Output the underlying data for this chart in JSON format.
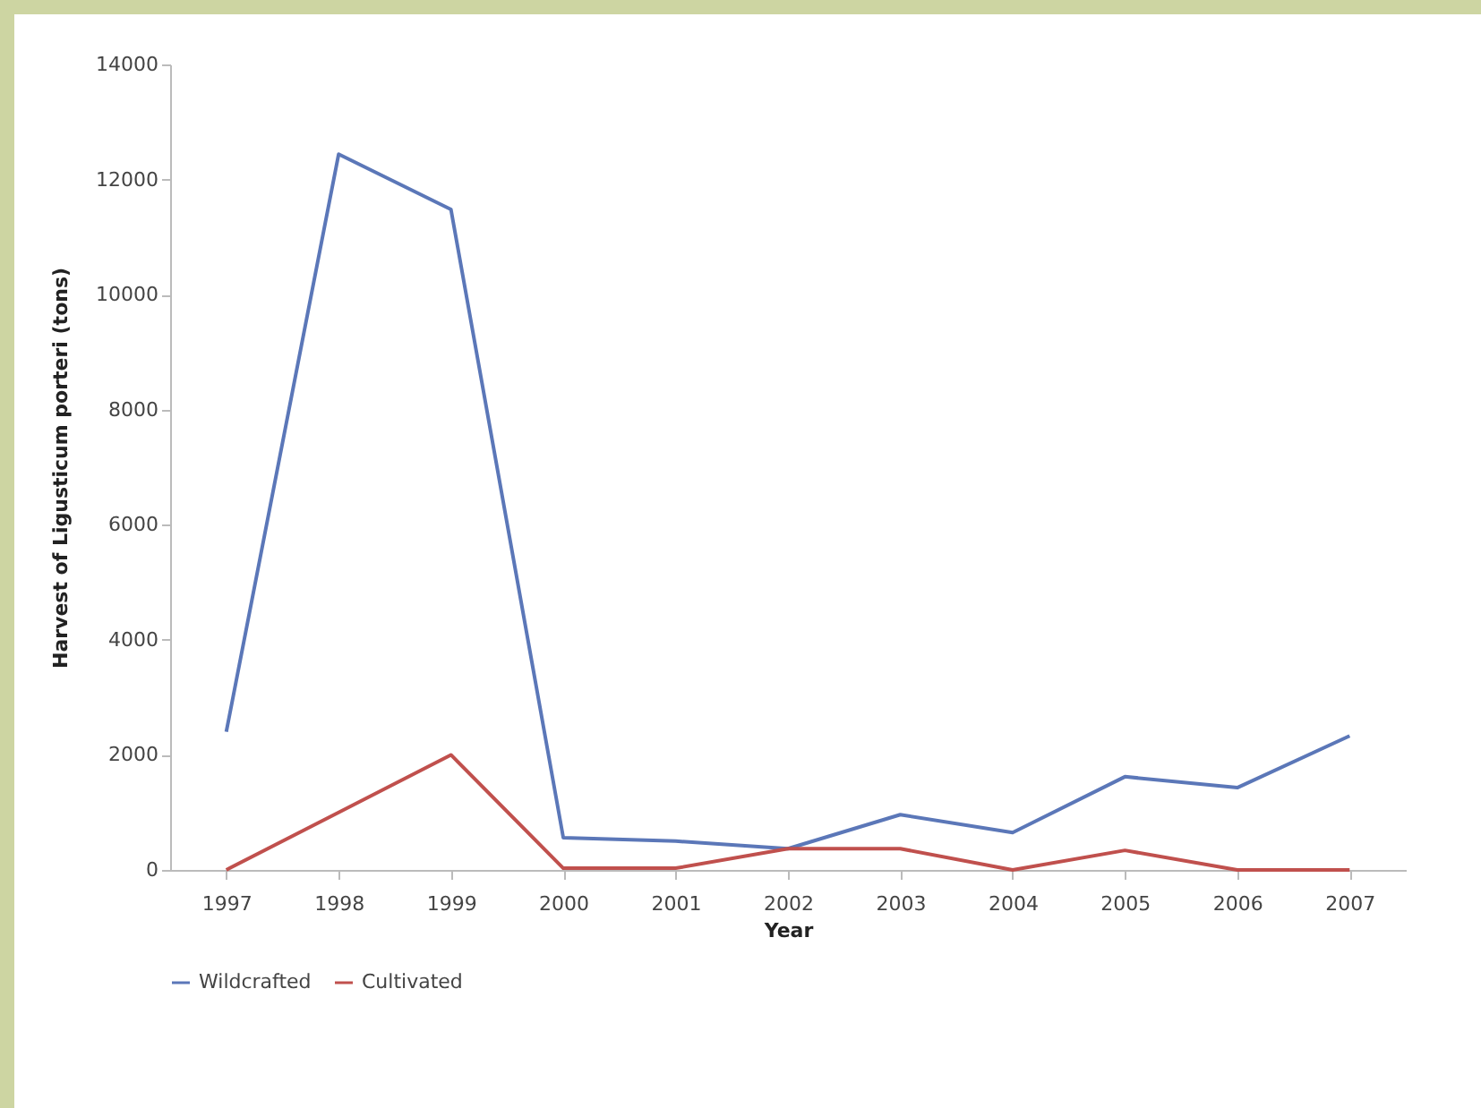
{
  "chart_data": {
    "type": "line",
    "xlabel": "Year",
    "ylabel": "Harvest of Ligusticum porteri (tons)",
    "categories": [
      "1997",
      "1998",
      "1999",
      "2000",
      "2001",
      "2002",
      "2003",
      "2004",
      "2005",
      "2006",
      "2007"
    ],
    "series": [
      {
        "name": "Wildcrafted",
        "color": "#5b77b8",
        "values": [
          2400,
          12440,
          11480,
          560,
          500,
          370,
          960,
          650,
          1620,
          1430,
          2330
        ]
      },
      {
        "name": "Cultivated",
        "color": "#c0504d",
        "values": [
          0,
          1000,
          2000,
          30,
          30,
          370,
          370,
          0,
          340,
          0,
          0
        ]
      }
    ],
    "ylim": [
      0,
      14000
    ],
    "yticks": [
      0,
      2000,
      4000,
      6000,
      8000,
      10000,
      12000,
      14000
    ],
    "grid": false,
    "legend": "bottom",
    "marker": "none",
    "line_style": "solid"
  }
}
